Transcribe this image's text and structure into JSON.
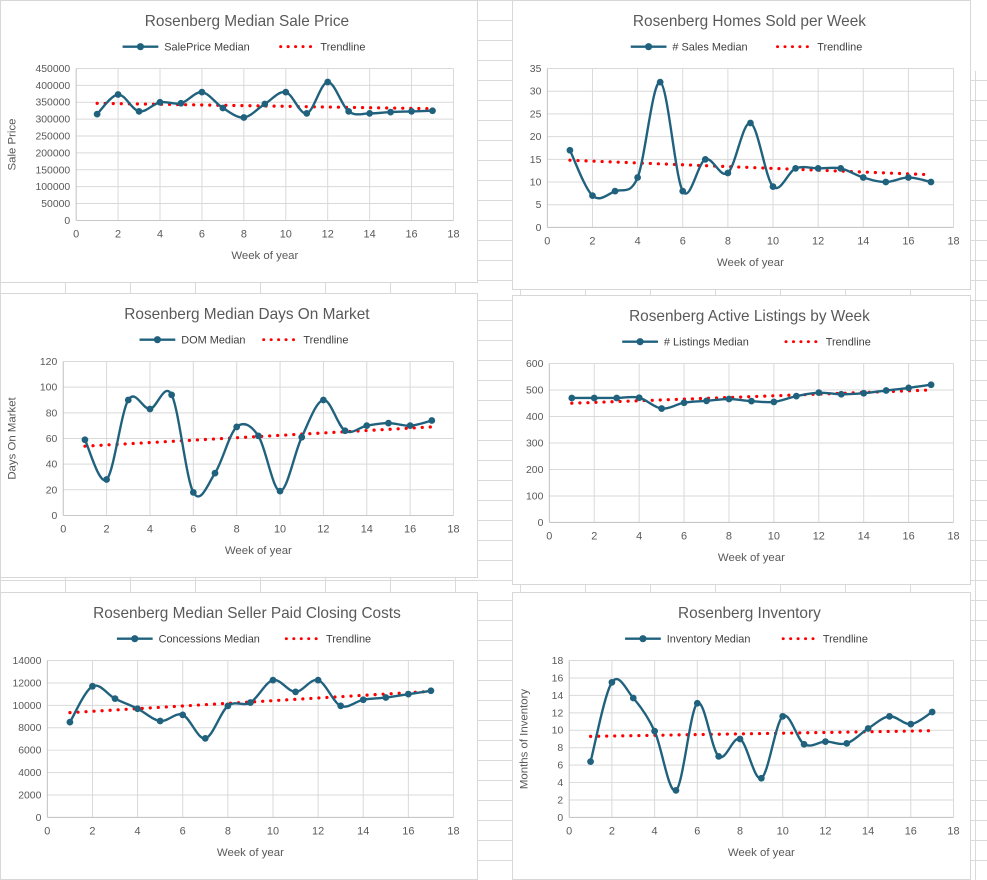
{
  "colors": {
    "series_line": "#20627e",
    "trendline": "#ff0000",
    "title_text": "#595959",
    "axis_text": "#595959",
    "legend_text": "#3f3f3f",
    "gridline": "#d9d9d9",
    "axis_line": "#bfbfbf",
    "sheet_grid": "#dadada"
  },
  "weeks": [
    1,
    2,
    3,
    4,
    5,
    6,
    7,
    8,
    9,
    10,
    11,
    12,
    13,
    14,
    15,
    16,
    17
  ],
  "chart_data": [
    {
      "type": "line",
      "id": "sale-price",
      "title": "Rosenberg Median Sale Price",
      "series_label": "SalePrice Median",
      "trend_label": "Trendline",
      "x_title": "Week of year",
      "y_title": "Sale Price",
      "values": [
        315000,
        373000,
        323000,
        350000,
        347000,
        380000,
        333000,
        305000,
        345000,
        380000,
        317000,
        410000,
        323000,
        317000,
        321000,
        323000,
        325000
      ],
      "trendline": [
        347000,
        331000
      ],
      "ylim": [
        0,
        450000
      ],
      "y_ticks": [
        0,
        50000,
        100000,
        150000,
        200000,
        250000,
        300000,
        350000,
        400000,
        450000
      ],
      "xlim": [
        0,
        18
      ],
      "x_ticks": [
        0,
        2,
        4,
        6,
        8,
        10,
        12,
        14,
        16,
        18
      ],
      "grid": true,
      "legend_position": "top"
    },
    {
      "type": "line",
      "id": "homes-sold",
      "title": "Rosenberg Homes Sold per Week",
      "series_label": "# Sales Median",
      "trend_label": "Trendline",
      "x_title": "Week of year",
      "y_title": "",
      "values": [
        17,
        7,
        8,
        11,
        32,
        8,
        15,
        12,
        23,
        9,
        13,
        13,
        13,
        11,
        10,
        11,
        10
      ],
      "trendline": [
        14.8,
        11.6
      ],
      "ylim": [
        0,
        35
      ],
      "y_ticks": [
        0,
        5,
        10,
        15,
        20,
        25,
        30,
        35
      ],
      "xlim": [
        0,
        18
      ],
      "x_ticks": [
        0,
        2,
        4,
        6,
        8,
        10,
        12,
        14,
        16,
        18
      ],
      "grid": true,
      "legend_position": "top"
    },
    {
      "type": "line",
      "id": "days-on-market",
      "title": "Rosenberg Median Days On Market",
      "series_label": "DOM Median",
      "trend_label": "Trendline",
      "x_title": "Week of year",
      "y_title": "Days On Market",
      "values": [
        59,
        28,
        90,
        83,
        94,
        18,
        33,
        69,
        62,
        19,
        61,
        90,
        66,
        70,
        72,
        70,
        74
      ],
      "trendline": [
        54,
        69
      ],
      "ylim": [
        0,
        120
      ],
      "y_ticks": [
        0,
        20,
        40,
        60,
        80,
        100,
        120
      ],
      "xlim": [
        0,
        18
      ],
      "x_ticks": [
        0,
        2,
        4,
        6,
        8,
        10,
        12,
        14,
        16,
        18
      ],
      "grid": true,
      "legend_position": "top"
    },
    {
      "type": "line",
      "id": "active-listings",
      "title": "Rosenberg  Active Listings by Week",
      "series_label": "# Listings Median",
      "trend_label": "Trendline",
      "x_title": "Week of year",
      "y_title": "",
      "values": [
        470,
        470,
        470,
        471,
        430,
        452,
        459,
        466,
        458,
        455,
        477,
        490,
        484,
        488,
        498,
        508,
        520
      ],
      "trendline": [
        450,
        500
      ],
      "ylim": [
        0,
        600
      ],
      "y_ticks": [
        0,
        100,
        200,
        300,
        400,
        500,
        600
      ],
      "xlim": [
        0,
        18
      ],
      "x_ticks": [
        0,
        2,
        4,
        6,
        8,
        10,
        12,
        14,
        16,
        18
      ],
      "grid": true,
      "legend_position": "top"
    },
    {
      "type": "line",
      "id": "closing-costs",
      "title": "Rosenberg Median Seller Paid Closing Costs",
      "series_label": "Concessions Median",
      "trend_label": "Trendline",
      "x_title": "Week of year",
      "y_title": "",
      "values": [
        8500,
        11700,
        10600,
        9700,
        8600,
        9150,
        7050,
        9950,
        10250,
        12250,
        11200,
        12250,
        9950,
        10500,
        10700,
        11000,
        11300
      ],
      "trendline": [
        9350,
        11250
      ],
      "ylim": [
        0,
        14000
      ],
      "y_ticks": [
        0,
        2000,
        4000,
        6000,
        8000,
        10000,
        12000,
        14000
      ],
      "xlim": [
        0,
        18
      ],
      "x_ticks": [
        0,
        2,
        4,
        6,
        8,
        10,
        12,
        14,
        16,
        18
      ],
      "grid": true,
      "legend_position": "top"
    },
    {
      "type": "line",
      "id": "inventory",
      "title": "Rosenberg Inventory",
      "series_label": "Inventory Median",
      "trend_label": "Trendline",
      "x_title": "Week of year",
      "y_title": "Months of Inventory",
      "values": [
        6.4,
        15.5,
        13.7,
        9.9,
        3.1,
        13.1,
        7.0,
        9.0,
        4.5,
        11.6,
        8.4,
        8.7,
        8.5,
        10.2,
        11.6,
        10.7,
        12.1
      ],
      "trendline": [
        9.3,
        9.95
      ],
      "ylim": [
        0,
        18
      ],
      "y_ticks": [
        0,
        2,
        4,
        6,
        8,
        10,
        12,
        14,
        16,
        18
      ],
      "xlim": [
        0,
        18
      ],
      "x_ticks": [
        0,
        2,
        4,
        6,
        8,
        10,
        12,
        14,
        16,
        18
      ],
      "grid": true,
      "legend_position": "top"
    }
  ]
}
